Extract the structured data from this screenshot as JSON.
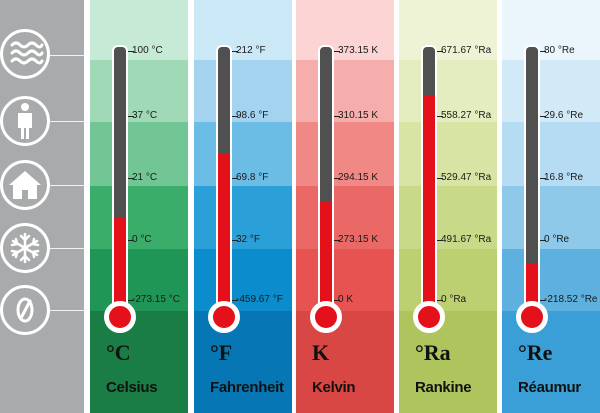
{
  "icons": [
    {
      "name": "steam-waves-icon"
    },
    {
      "name": "person-icon"
    },
    {
      "name": "house-icon"
    },
    {
      "name": "snowflake-icon"
    },
    {
      "name": "zero-icon"
    }
  ],
  "scales": [
    {
      "id": "celsius",
      "symbol": "°C",
      "name": "Celsius",
      "fill_level": 0.36,
      "band_colors": [
        "#c6ead5",
        "#9fd9b5",
        "#72c594",
        "#3aad6b",
        "#1f9655",
        "#1a7d46"
      ],
      "ticks": [
        "100 °C",
        "37 °C",
        "21 °C",
        "0 °C",
        "-273.15 °C"
      ]
    },
    {
      "id": "fahrenheit",
      "symbol": "°F",
      "name": "Fahrenheit",
      "fill_level": 0.6,
      "band_colors": [
        "#cbe8f7",
        "#a3d3ef",
        "#6cbde6",
        "#2b9fd8",
        "#0a8ccd",
        "#0677b4"
      ],
      "ticks": [
        "212 °F",
        "98.6 °F",
        "69.8 °F",
        "32 °F",
        "-459.67 °F"
      ]
    },
    {
      "id": "kelvin",
      "symbol": "K",
      "name": "Kelvin",
      "fill_level": 0.42,
      "band_colors": [
        "#fbd4d3",
        "#f6aeac",
        "#f08986",
        "#ea6966",
        "#e65350",
        "#d84743"
      ],
      "ticks": [
        "373.15 K",
        "310.15 K",
        "294.15 K",
        "273.15 K",
        "0 K"
      ]
    },
    {
      "id": "rankine",
      "symbol": "°Ra",
      "name": "Rankine",
      "fill_level": 0.82,
      "band_colors": [
        "#eef3d5",
        "#e3edbf",
        "#d7e4a4",
        "#c8da87",
        "#bcd071",
        "#aec45d"
      ],
      "ticks": [
        "671.67 °Ra",
        "558.27 °Ra",
        "529.47 °Ra",
        "491.67 °Ra",
        "0 °Ra"
      ]
    },
    {
      "id": "reaumur",
      "symbol": "°Re",
      "name": "Réaumur",
      "fill_level": 0.18,
      "band_colors": [
        "#eaf5fc",
        "#d2eaf8",
        "#b5dcf2",
        "#8ec9ea",
        "#5eb1df",
        "#3a9fd6"
      ],
      "ticks": [
        "80 °Re",
        "29.6 °Re",
        "16.8 °Re",
        "0 °Re",
        "-218.52 °Re"
      ]
    }
  ]
}
